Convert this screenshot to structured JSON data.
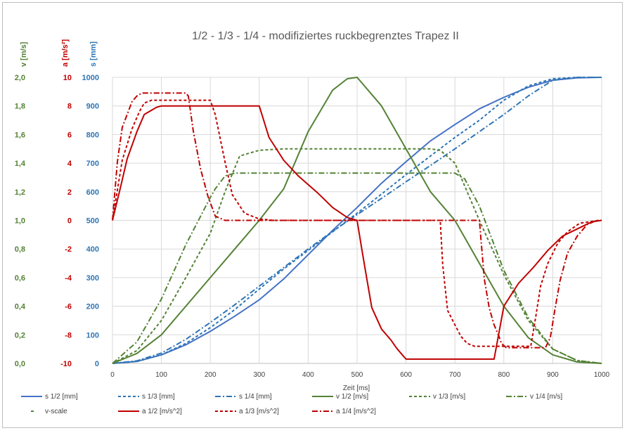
{
  "colors": {
    "s": "#4472c4",
    "v": "#548235",
    "a": "#c00000",
    "grid": "#d9d9d9",
    "axis": "#bfbfbf"
  },
  "chart_data": {
    "type": "line",
    "title": "1/2 - 1/3 - 1/4 - modifiziertes ruckbegrenztes Trapez  II",
    "xlabel": "Zeit [ms]",
    "xlim": [
      0,
      1000
    ],
    "x_ticks": [
      "0",
      "100",
      "200",
      "300",
      "400",
      "500",
      "600",
      "700",
      "800",
      "900",
      "1000"
    ],
    "axes": [
      {
        "label": "v [m/s]",
        "color": "#548235",
        "ylim": [
          0,
          2
        ],
        "ticks": [
          "0,0",
          "0,2",
          "0,4",
          "0,6",
          "0,8",
          "1,0",
          "1,2",
          "1,4",
          "1,6",
          "1,8",
          "2,0"
        ]
      },
      {
        "label": "a [m/s²]",
        "color": "#c00000",
        "ylim": [
          -10,
          10
        ],
        "ticks": [
          "-10",
          "-8",
          "-6",
          "-4",
          "-2",
          "0",
          "2",
          "4",
          "6",
          "8",
          "10"
        ]
      },
      {
        "label": "s [mm]",
        "color": "#2e75b6",
        "ylim": [
          0,
          1000
        ],
        "ticks": [
          "0",
          "100",
          "200",
          "300",
          "400",
          "500",
          "600",
          "700",
          "800",
          "900",
          "1000"
        ]
      }
    ],
    "grid": true,
    "legend_position": "bottom",
    "series": [
      {
        "name": "s 1/2 [mm]",
        "quantity": "s",
        "dash": "solid",
        "color": "#4472c4",
        "x": [
          0,
          50,
          100,
          150,
          200,
          250,
          300,
          350,
          400,
          450,
          500,
          550,
          600,
          650,
          700,
          750,
          800,
          850,
          900,
          950,
          1000
        ],
        "y": [
          0,
          7,
          30,
          65,
          112,
          165,
          222,
          295,
          380,
          465,
          545,
          630,
          705,
          778,
          835,
          890,
          930,
          965,
          990,
          998,
          1000
        ]
      },
      {
        "name": "s 1/3 [mm]",
        "quantity": "s",
        "dash": "dash",
        "color": "#2e75b6",
        "x": [
          0,
          50,
          100,
          150,
          200,
          250,
          300,
          350,
          400,
          450,
          500,
          550,
          600,
          650,
          700,
          750,
          800,
          850,
          900,
          950,
          1000
        ],
        "y": [
          0,
          7,
          30,
          70,
          125,
          188,
          260,
          330,
          395,
          460,
          525,
          592,
          660,
          725,
          790,
          850,
          920,
          970,
          995,
          1000,
          1000
        ]
      },
      {
        "name": "s 1/4 [mm]",
        "quantity": "s",
        "dash": "dashdot",
        "color": "#2e75b6",
        "x": [
          0,
          50,
          100,
          150,
          200,
          250,
          300,
          350,
          400,
          450,
          500,
          550,
          600,
          650,
          700,
          750,
          800,
          850,
          900,
          950,
          1000
        ],
        "y": [
          0,
          9,
          36,
          84,
          143,
          205,
          270,
          335,
          400,
          462,
          520,
          577,
          635,
          692,
          750,
          810,
          870,
          935,
          990,
          1000,
          1000
        ]
      },
      {
        "name": "v 1/2 [m/s]",
        "quantity": "v",
        "dash": "solid",
        "color": "#548235",
        "x": [
          0,
          50,
          100,
          150,
          200,
          250,
          300,
          350,
          400,
          450,
          480,
          500,
          550,
          600,
          650,
          700,
          750,
          800,
          850,
          900,
          950,
          1000
        ],
        "y": [
          0,
          0.07,
          0.2,
          0.4,
          0.6,
          0.8,
          1.0,
          1.22,
          1.62,
          1.91,
          1.99,
          2.0,
          1.8,
          1.5,
          1.2,
          1.0,
          0.7,
          0.4,
          0.18,
          0.06,
          0.01,
          0
        ]
      },
      {
        "name": "v 1/3 [m/s]",
        "quantity": "v",
        "dash": "dash",
        "color": "#548235",
        "x": [
          0,
          50,
          100,
          150,
          200,
          230,
          260,
          300,
          350,
          650,
          670,
          700,
          750,
          800,
          850,
          900,
          950,
          1000
        ],
        "y": [
          0,
          0.09,
          0.3,
          0.6,
          0.91,
          1.2,
          1.45,
          1.49,
          1.5,
          1.5,
          1.49,
          1.4,
          1.0,
          0.62,
          0.3,
          0.1,
          0.02,
          0
        ]
      },
      {
        "name": "v 1/4 [m/s]",
        "quantity": "v",
        "dash": "dashdot",
        "color": "#548235",
        "x": [
          0,
          50,
          100,
          150,
          200,
          210,
          230,
          250,
          300,
          700,
          720,
          750,
          800,
          850,
          900,
          950,
          1000
        ],
        "y": [
          0,
          0.15,
          0.45,
          0.83,
          1.16,
          1.22,
          1.31,
          1.33,
          1.33,
          1.33,
          1.29,
          1.1,
          0.65,
          0.32,
          0.1,
          0.02,
          0
        ]
      },
      {
        "name": "v-scale",
        "quantity": "v",
        "dash": "dash",
        "color": "#548235",
        "x": [],
        "y": []
      },
      {
        "name": "a 1/2 [m/s^2]",
        "quantity": "a",
        "dash": "solid",
        "color": "#c00000",
        "x": [
          0,
          15,
          30,
          50,
          65,
          80,
          90,
          100,
          300,
          320,
          350,
          380,
          420,
          450,
          480,
          500,
          510,
          520,
          530,
          550,
          570,
          580,
          590,
          600,
          780,
          800,
          830,
          860,
          890,
          920,
          950,
          980,
          1000
        ],
        "y": [
          0,
          2.1,
          4.3,
          6.2,
          7.4,
          7.7,
          7.9,
          8,
          8,
          5.8,
          4.2,
          3.1,
          1.9,
          0.9,
          0.2,
          0,
          -2.1,
          -4.1,
          -6.1,
          -7.6,
          -8.4,
          -8.9,
          -9.3,
          -9.7,
          -9.7,
          -6.0,
          -4.4,
          -3.3,
          -2.1,
          -1.1,
          -0.6,
          -0.1,
          0
        ]
      },
      {
        "name": "a 1/3 [m/s^2]",
        "quantity": "a",
        "dash": "dash",
        "color": "#c00000",
        "x": [
          0,
          20,
          40,
          55,
          65,
          80,
          200,
          210,
          230,
          245,
          270,
          300,
          330,
          670,
          675,
          685,
          700,
          712,
          725,
          740,
          745,
          855,
          865,
          875,
          890,
          910,
          930,
          955,
          975,
          995,
          1000
        ],
        "y": [
          0,
          4.2,
          6.4,
          7.6,
          8.2,
          8.4,
          8.4,
          7.4,
          4.1,
          1.8,
          0.5,
          0.1,
          0,
          0,
          -3.1,
          -6.3,
          -7.3,
          -8.1,
          -8.6,
          -8.8,
          -8.8,
          -8.8,
          -6.8,
          -4.6,
          -3.0,
          -1.6,
          -0.8,
          -0.2,
          -0.1,
          0,
          0
        ]
      },
      {
        "name": "a 1/4 [m/s^2]",
        "quantity": "a",
        "dash": "dashdot",
        "color": "#c00000",
        "x": [
          0,
          10,
          20,
          30,
          40,
          50,
          60,
          150,
          155,
          165,
          180,
          195,
          210,
          230,
          300,
          600,
          750,
          760,
          770,
          780,
          790,
          795,
          805,
          885,
          895,
          905,
          915,
          930,
          950,
          970,
          990,
          1000
        ],
        "y": [
          0,
          4.1,
          6.5,
          7.4,
          8.3,
          8.7,
          8.9,
          8.9,
          8.7,
          6.3,
          3.6,
          1.7,
          0.3,
          0,
          0,
          0,
          0,
          -4.1,
          -6.1,
          -7.3,
          -8.1,
          -8.6,
          -8.9,
          -8.9,
          -8.2,
          -6.1,
          -4.2,
          -2.3,
          -1.1,
          -0.3,
          0,
          0
        ]
      }
    ]
  }
}
